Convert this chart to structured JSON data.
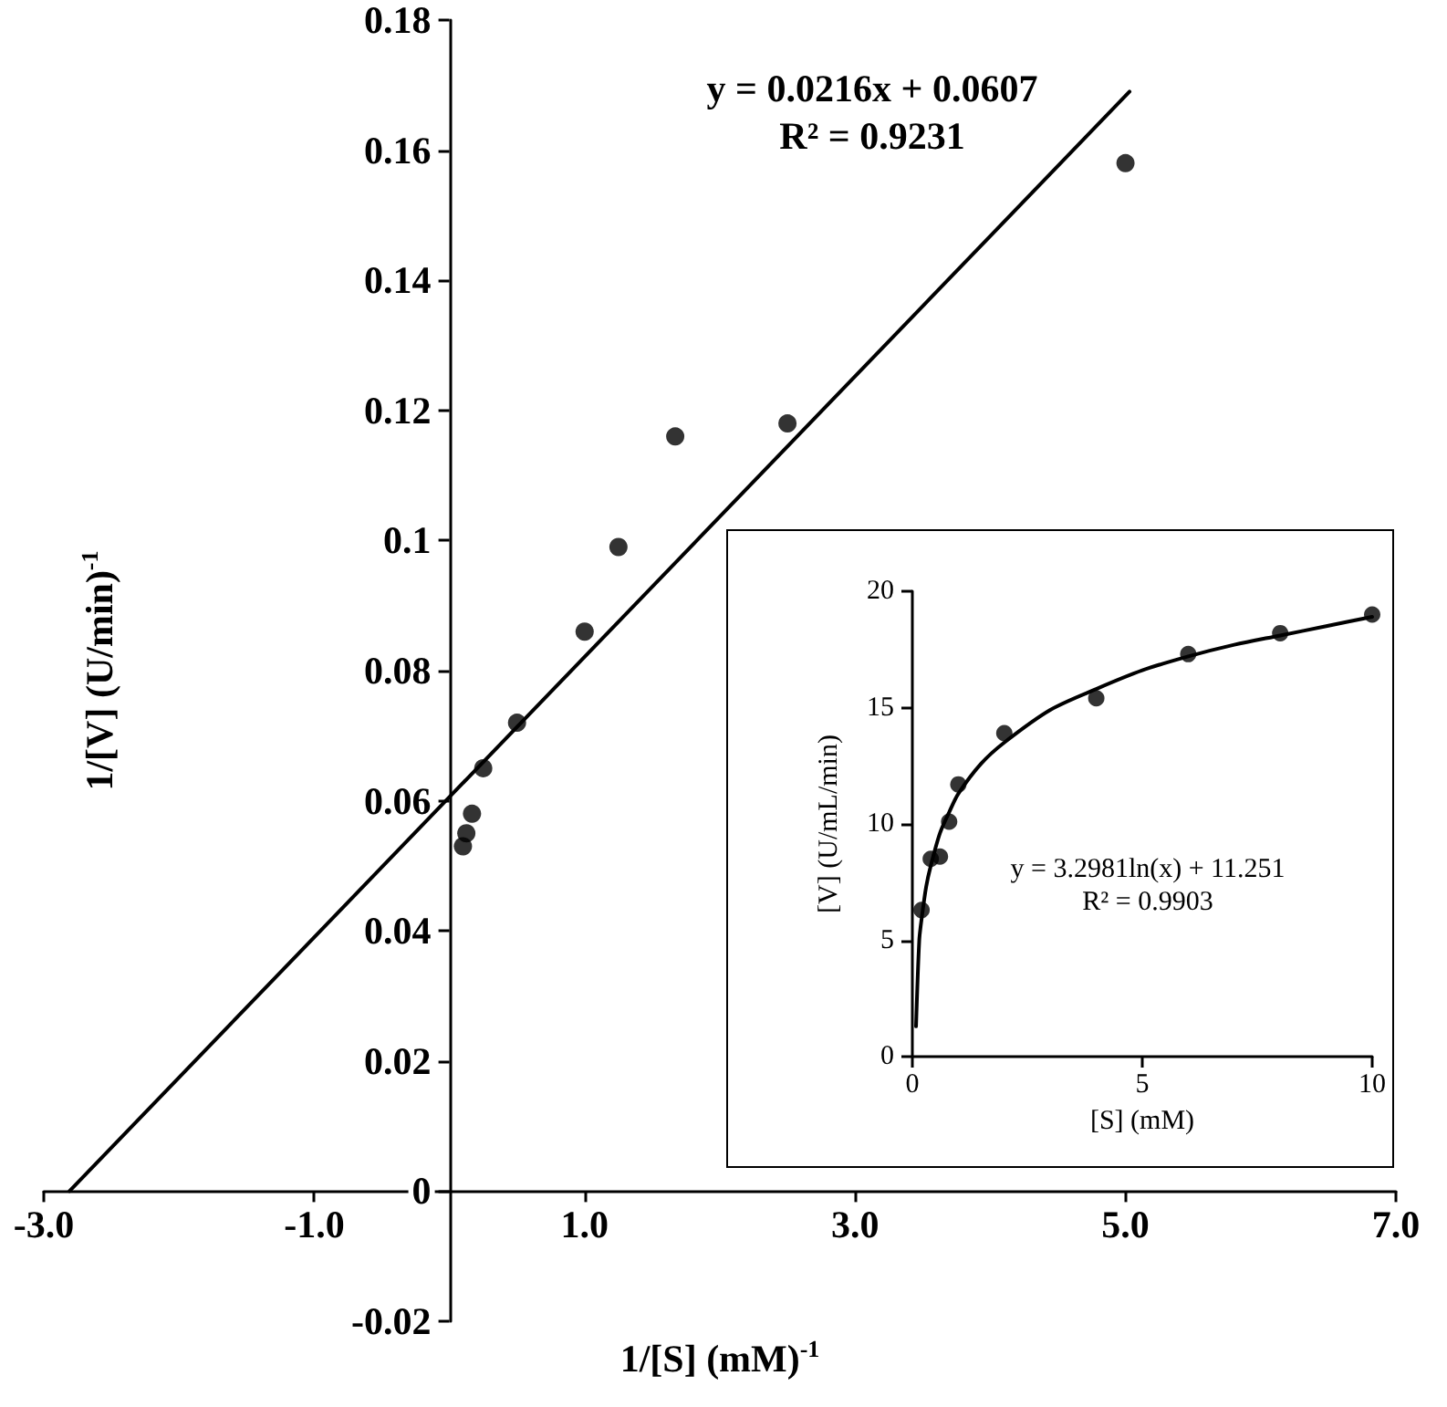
{
  "chart_data": [
    {
      "type": "scatter",
      "xlabel": "1/[S] (mM)$^{-1}$",
      "ylabel": "1/[V] (U/min)$^{-1}$",
      "annotations": [
        "y = 0.0216x + 0.0607",
        "R² = 0.9231"
      ],
      "xlim": [
        -3,
        7
      ],
      "xticks": [
        {
          "value": -3,
          "label": "-3.0"
        },
        {
          "value": -1,
          "label": "-1.0"
        },
        {
          "value": 1,
          "label": "1.0"
        },
        {
          "value": 3,
          "label": "3.0"
        },
        {
          "value": 5,
          "label": "5.0"
        },
        {
          "value": 7,
          "label": "7.0"
        }
      ],
      "ylim": [
        -0.02,
        0.18
      ],
      "yticks": [
        -0.02,
        0,
        0.02,
        0.04,
        0.06,
        0.08,
        0.1,
        0.12,
        0.14,
        0.16,
        0.18
      ],
      "series": [
        {
          "type": "scatter",
          "marker": "circle",
          "color": "#000000",
          "x": [
            0.1,
            0.125,
            0.167,
            0.25,
            0.5,
            1.0,
            1.25,
            1.67,
            2.5,
            5.0
          ],
          "values": [
            0.053,
            0.055,
            0.058,
            0.065,
            0.072,
            0.086,
            0.099,
            0.116,
            0.118,
            0.158
          ]
        },
        {
          "type": "line",
          "marker": "none",
          "line_style": "solid",
          "color": "#000000",
          "x": [
            -2.81,
            5.03
          ],
          "values": [
            0,
            0.169
          ]
        }
      ]
    },
    {
      "type": "scatter",
      "xlabel": "[S] (mM)",
      "ylabel": "[V] (U/mL/min)",
      "annotations": [
        "y = 3.2981ln(x) + 11.251",
        "R² = 0.9903"
      ],
      "xlim": [
        0,
        10
      ],
      "xticks": [
        0,
        5,
        10
      ],
      "ylim": [
        0,
        20
      ],
      "yticks": [
        0,
        5,
        10,
        15,
        20
      ],
      "series": [
        {
          "type": "scatter",
          "marker": "circle",
          "color": "#000000",
          "x": [
            0.2,
            0.4,
            0.6,
            0.8,
            1,
            2,
            4,
            6,
            8,
            10
          ],
          "values": [
            6.3,
            8.5,
            8.6,
            10.1,
            11.7,
            13.9,
            15.4,
            17.3,
            18.2,
            19.0
          ]
        },
        {
          "type": "line",
          "marker": "none",
          "line_style": "solid",
          "color": "#000000",
          "x": [
            0.08,
            0.15,
            0.2,
            0.3,
            0.4,
            0.6,
            0.8,
            1,
            1.5,
            2,
            3,
            4,
            5,
            6,
            7,
            8,
            9,
            10
          ],
          "values": [
            1.3,
            5.0,
            5.9,
            7.3,
            8.2,
            9.6,
            10.5,
            11.3,
            12.6,
            13.5,
            14.9,
            15.8,
            16.6,
            17.2,
            17.7,
            18.1,
            18.5,
            18.9
          ]
        }
      ]
    }
  ]
}
